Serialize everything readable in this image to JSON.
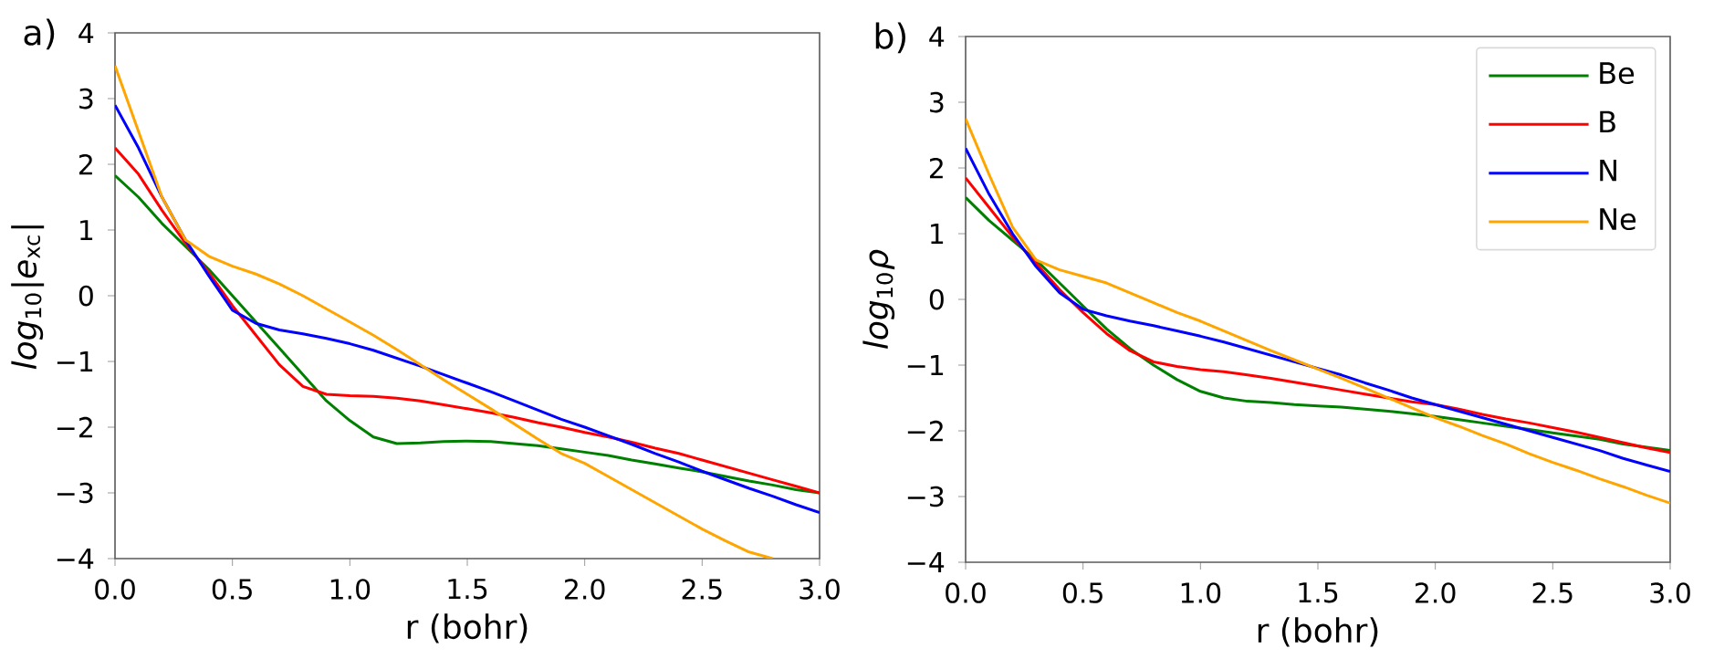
{
  "chart_data": [
    {
      "type": "line",
      "title": "a)",
      "xlabel": "r (bohr)",
      "ylabel": "*log*$_{10}$|*e*$_{xc}$|",
      "x": [
        0,
        0.1,
        0.2,
        0.3,
        0.4,
        0.5,
        0.6,
        0.7,
        0.8,
        0.9,
        1.0,
        1.1,
        1.2,
        1.3,
        1.4,
        1.5,
        1.6,
        1.7,
        1.8,
        1.9,
        2.0,
        2.1,
        2.2,
        2.3,
        2.4,
        2.5,
        2.6,
        2.7,
        2.8,
        2.9,
        3.0
      ],
      "series": [
        {
          "color": "#008000",
          "values": [
            1.83,
            1.5,
            1.1,
            0.75,
            0.4,
            0.0,
            -0.4,
            -0.8,
            -1.2,
            -1.6,
            -1.9,
            -2.15,
            -2.25,
            -2.24,
            -2.22,
            -2.21,
            -2.22,
            -2.25,
            -2.28,
            -2.33,
            -2.38,
            -2.43,
            -2.5,
            -2.56,
            -2.62,
            -2.68,
            -2.75,
            -2.82,
            -2.88,
            -2.95,
            -3.0
          ]
        },
        {
          "color": "#ff0000",
          "values": [
            2.25,
            1.85,
            1.3,
            0.8,
            0.35,
            -0.15,
            -0.6,
            -1.05,
            -1.38,
            -1.5,
            -1.52,
            -1.53,
            -1.56,
            -1.6,
            -1.66,
            -1.72,
            -1.78,
            -1.85,
            -1.93,
            -2.0,
            -2.08,
            -2.15,
            -2.23,
            -2.32,
            -2.4,
            -2.5,
            -2.6,
            -2.7,
            -2.8,
            -2.9,
            -3.0
          ]
        },
        {
          "color": "#0000ff",
          "values": [
            2.9,
            2.25,
            1.5,
            0.85,
            0.3,
            -0.22,
            -0.42,
            -0.52,
            -0.58,
            -0.65,
            -0.73,
            -0.83,
            -0.95,
            -1.07,
            -1.2,
            -1.33,
            -1.46,
            -1.6,
            -1.74,
            -1.88,
            -2.0,
            -2.13,
            -2.26,
            -2.4,
            -2.53,
            -2.67,
            -2.8,
            -2.93,
            -3.05,
            -3.18,
            -3.3
          ]
        },
        {
          "color": "#ffa500",
          "values": [
            3.5,
            2.5,
            1.5,
            0.85,
            0.6,
            0.45,
            0.33,
            0.18,
            0.0,
            -0.2,
            -0.4,
            -0.6,
            -0.82,
            -1.05,
            -1.28,
            -1.5,
            -1.72,
            -1.95,
            -2.18,
            -2.4,
            -2.55,
            -2.75,
            -2.95,
            -3.15,
            -3.35,
            -3.55,
            -3.73,
            -3.9,
            -4.0,
            null,
            null
          ]
        }
      ],
      "xlim": [
        0,
        3
      ],
      "ylim": [
        -4,
        4
      ],
      "xticks": [
        {
          "value": 0,
          "label": "0.0"
        },
        {
          "value": 0.5,
          "label": "0.5"
        },
        {
          "value": 1,
          "label": "1.0"
        },
        {
          "value": 1.5,
          "label": "1.5"
        },
        {
          "value": 2,
          "label": "2.0"
        },
        {
          "value": 2.5,
          "label": "2.5"
        },
        {
          "value": 3,
          "label": "3.0"
        }
      ],
      "yticks": [
        {
          "value": -4,
          "label": "−4"
        },
        {
          "value": -3,
          "label": "−3"
        },
        {
          "value": -2,
          "label": "−2"
        },
        {
          "value": -1,
          "label": "−1"
        },
        0,
        1,
        2,
        3,
        4
      ],
      "grid": false,
      "legend": false,
      "marker": "none",
      "line_style": "solid"
    },
    {
      "type": "line",
      "title": "b)",
      "xlabel": "r (bohr)",
      "ylabel": "*log*$_{10}$*ρ*",
      "x": [
        0,
        0.1,
        0.2,
        0.3,
        0.4,
        0.5,
        0.6,
        0.7,
        0.8,
        0.9,
        1.0,
        1.1,
        1.2,
        1.3,
        1.4,
        1.5,
        1.6,
        1.7,
        1.8,
        1.9,
        2.0,
        2.1,
        2.2,
        2.3,
        2.4,
        2.5,
        2.6,
        2.7,
        2.8,
        2.9,
        3.0
      ],
      "series": [
        {
          "name": "Be",
          "color": "#008000",
          "values": [
            1.55,
            1.2,
            0.9,
            0.6,
            0.25,
            -0.1,
            -0.45,
            -0.75,
            -1.0,
            -1.22,
            -1.4,
            -1.5,
            -1.55,
            -1.57,
            -1.6,
            -1.62,
            -1.64,
            -1.67,
            -1.7,
            -1.74,
            -1.78,
            -1.83,
            -1.88,
            -1.93,
            -1.98,
            -2.03,
            -2.08,
            -2.13,
            -2.2,
            -2.25,
            -2.3
          ]
        },
        {
          "name": "B",
          "color": "#ff0000",
          "values": [
            1.85,
            1.4,
            0.95,
            0.55,
            0.15,
            -0.2,
            -0.52,
            -0.78,
            -0.95,
            -1.02,
            -1.07,
            -1.1,
            -1.15,
            -1.2,
            -1.26,
            -1.32,
            -1.38,
            -1.44,
            -1.5,
            -1.56,
            -1.6,
            -1.67,
            -1.75,
            -1.82,
            -1.88,
            -1.95,
            -2.02,
            -2.1,
            -2.18,
            -2.26,
            -2.33
          ]
        },
        {
          "name": "N",
          "color": "#0000ff",
          "values": [
            2.3,
            1.6,
            1.0,
            0.5,
            0.1,
            -0.15,
            -0.25,
            -0.33,
            -0.4,
            -0.48,
            -0.56,
            -0.65,
            -0.75,
            -0.85,
            -0.95,
            -1.05,
            -1.15,
            -1.27,
            -1.38,
            -1.5,
            -1.6,
            -1.7,
            -1.8,
            -1.9,
            -2.0,
            -2.1,
            -2.2,
            -2.3,
            -2.42,
            -2.52,
            -2.62
          ]
        },
        {
          "name": "Ne",
          "color": "#ffa500",
          "values": [
            2.75,
            1.9,
            1.1,
            0.6,
            0.45,
            0.35,
            0.25,
            0.1,
            -0.05,
            -0.2,
            -0.33,
            -0.48,
            -0.63,
            -0.78,
            -0.92,
            -1.06,
            -1.2,
            -1.35,
            -1.5,
            -1.65,
            -1.8,
            -1.93,
            -2.07,
            -2.2,
            -2.35,
            -2.48,
            -2.6,
            -2.73,
            -2.85,
            -2.98,
            -3.1
          ]
        }
      ],
      "xlim": [
        0,
        3
      ],
      "ylim": [
        -4,
        4
      ],
      "xticks": [
        {
          "value": 0,
          "label": "0.0"
        },
        {
          "value": 0.5,
          "label": "0.5"
        },
        {
          "value": 1,
          "label": "1.0"
        },
        {
          "value": 1.5,
          "label": "1.5"
        },
        {
          "value": 2,
          "label": "2.0"
        },
        {
          "value": 2.5,
          "label": "2.5"
        },
        {
          "value": 3,
          "label": "3.0"
        }
      ],
      "yticks": [
        {
          "value": -4,
          "label": "−4"
        },
        {
          "value": -3,
          "label": "−3"
        },
        {
          "value": -2,
          "label": "−2"
        },
        {
          "value": -1,
          "label": "−1"
        },
        0,
        1,
        2,
        3,
        4
      ],
      "grid": false,
      "legend": "top right",
      "marker": "none",
      "line_style": "solid"
    }
  ]
}
